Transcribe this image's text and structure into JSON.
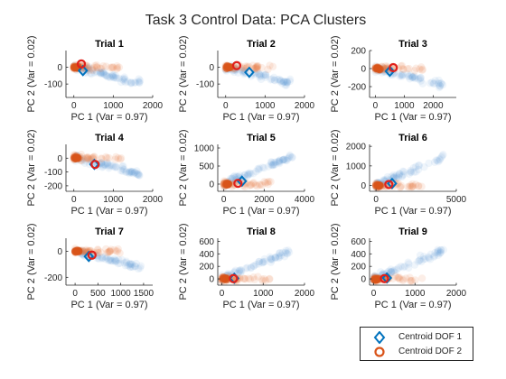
{
  "colors": {
    "dof1": "#0072BD",
    "dof2": "#D95319",
    "cloud1": "#4a90d0",
    "cloud2": "#e8703a"
  },
  "legend": [
    {
      "label": "Centroid DOF 1",
      "marker": "diamond",
      "color": "#0072BD"
    },
    {
      "label": "Centroid DOF 2",
      "marker": "circle",
      "color": "#D95319"
    }
  ],
  "chart_data": {
    "type": "scatter",
    "title": "Task 3 Control Data: PCA Clusters",
    "panels": [
      {
        "title": "Trial 1",
        "xlabel": "PC 1 (Var = 0.97)",
        "ylabel": "PC 2 (Var = 0.02)",
        "xlim": [
          -200,
          2000
        ],
        "ylim": [
          -180,
          100
        ],
        "xticks": [
          0,
          1000,
          2000
        ],
        "yticks": [
          -100,
          0
        ],
        "centroid_dof1": [
          230,
          -20
        ],
        "centroid_dof2": [
          190,
          20
        ]
      },
      {
        "title": "Trial 2",
        "xlabel": "PC 1 (Var = 0.97)",
        "ylabel": "PC 2 (Var = 0.02)",
        "xlim": [
          -200,
          2000
        ],
        "ylim": [
          -180,
          100
        ],
        "xticks": [
          0,
          1000,
          2000
        ],
        "yticks": [
          -100,
          0
        ],
        "centroid_dof1": [
          600,
          -30
        ],
        "centroid_dof2": [
          280,
          10
        ]
      },
      {
        "title": "Trial 3",
        "xlabel": "PC 1 (Var = 0.97)",
        "ylabel": "PC 2 (Var = 0.02)",
        "xlim": [
          -200,
          2800
        ],
        "ylim": [
          -320,
          200
        ],
        "xticks": [
          0,
          1000,
          2000
        ],
        "yticks": [
          -200,
          0,
          200
        ],
        "centroid_dof1": [
          500,
          -30
        ],
        "centroid_dof2": [
          620,
          10
        ]
      },
      {
        "title": "Trial 4",
        "xlabel": "PC 1 (Var = 0.97)",
        "ylabel": "PC 2 (Var = 0.02)",
        "xlim": [
          -200,
          2000
        ],
        "ylim": [
          -240,
          100
        ],
        "xticks": [
          0,
          1000,
          2000
        ],
        "yticks": [
          -200,
          -100,
          0
        ],
        "centroid_dof1": [
          520,
          -45
        ],
        "centroid_dof2": [
          540,
          -45
        ]
      },
      {
        "title": "Trial 5",
        "xlabel": "PC 1 (Var = 0.97)",
        "ylabel": "PC 2 (Var = 0.02)",
        "xlim": [
          -300,
          4000
        ],
        "ylim": [
          -200,
          1100
        ],
        "xticks": [
          0,
          2000,
          4000
        ],
        "yticks": [
          0,
          500,
          1000
        ],
        "centroid_dof1": [
          900,
          80
        ],
        "centroid_dof2": [
          700,
          20
        ]
      },
      {
        "title": "Trial 6",
        "xlabel": "PC 1 (Var = 0.97)",
        "ylabel": "PC 2 (Var = 0.02)",
        "xlim": [
          -400,
          5000
        ],
        "ylim": [
          -300,
          2100
        ],
        "xticks": [
          0,
          5000
        ],
        "yticks": [
          0,
          1000,
          2000
        ],
        "centroid_dof1": [
          1000,
          100
        ],
        "centroid_dof2": [
          800,
          50
        ]
      },
      {
        "title": "Trial 7",
        "xlabel": "PC 1 (Var = 0.97)",
        "ylabel": "PC 2 (Var = 0.02)",
        "xlim": [
          -200,
          1700
        ],
        "ylim": [
          -260,
          100
        ],
        "xticks": [
          0,
          500,
          1000,
          1500
        ],
        "yticks": [
          -200,
          0
        ],
        "centroid_dof1": [
          300,
          -40
        ],
        "centroid_dof2": [
          370,
          -30
        ]
      },
      {
        "title": "Trial 8",
        "xlabel": "PC 1 (Var = 0.97)",
        "ylabel": "PC 2 (Var = 0.02)",
        "xlim": [
          -100,
          2000
        ],
        "ylim": [
          -100,
          650
        ],
        "xticks": [
          0,
          1000,
          2000
        ],
        "yticks": [
          0,
          200,
          400,
          600
        ],
        "centroid_dof1": [
          300,
          10
        ],
        "centroid_dof2": [
          280,
          5
        ]
      },
      {
        "title": "Trial 9",
        "xlabel": "PC 1 (Var = 0.97)",
        "ylabel": "PC 2 (Var = 0.02)",
        "xlim": [
          -100,
          2000
        ],
        "ylim": [
          -100,
          650
        ],
        "xticks": [
          0,
          1000,
          2000
        ],
        "yticks": [
          0,
          200,
          400,
          600
        ],
        "centroid_dof1": [
          320,
          15
        ],
        "centroid_dof2": [
          260,
          5
        ]
      }
    ]
  }
}
